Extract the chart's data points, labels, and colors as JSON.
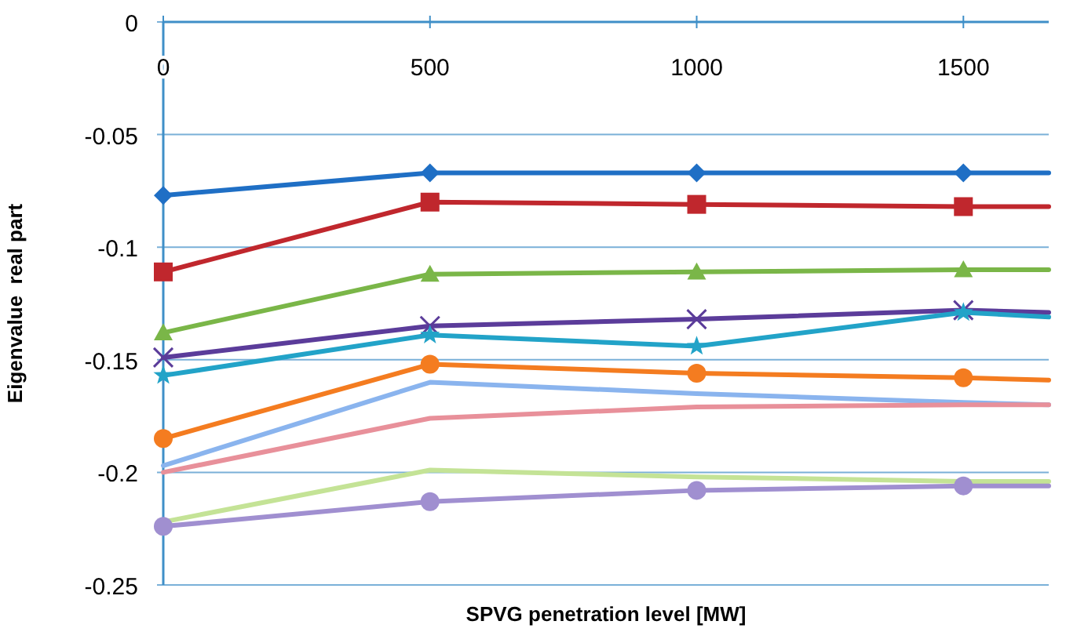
{
  "chart_data": {
    "type": "line",
    "xlabel": "SPVG penetration level [MW]",
    "ylabel": "Eigenvalue  real part",
    "x": [
      0,
      500,
      1000,
      1500,
      1660
    ],
    "xlim": [
      0,
      1660
    ],
    "xticks": [
      0,
      500,
      1000,
      1500
    ],
    "ylim": [
      -0.25,
      0
    ],
    "yticks": [
      0,
      -0.05,
      -0.1,
      -0.15,
      -0.2,
      -0.25
    ],
    "grid": "y",
    "line_style": "solid",
    "series": [
      {
        "color": "#1f6fc5",
        "marker": "diamond",
        "values": [
          -0.077,
          -0.067,
          -0.067,
          -0.067,
          -0.067
        ]
      },
      {
        "color": "#c0272d",
        "marker": "square",
        "values": [
          -0.111,
          -0.08,
          -0.081,
          -0.082,
          -0.082
        ]
      },
      {
        "color": "#7ab648",
        "marker": "triangle",
        "values": [
          -0.138,
          -0.112,
          -0.111,
          -0.11,
          -0.11
        ]
      },
      {
        "color": "#5b3c9a",
        "marker": "cross",
        "values": [
          -0.149,
          -0.135,
          -0.132,
          -0.128,
          -0.129
        ]
      },
      {
        "color": "#22a3c8",
        "marker": "star",
        "values": [
          -0.157,
          -0.139,
          -0.144,
          -0.129,
          -0.131
        ]
      },
      {
        "color": "#f47c20",
        "marker": "circle",
        "values": [
          -0.185,
          -0.152,
          -0.156,
          -0.158,
          -0.159
        ]
      },
      {
        "color": "#8ab4ee",
        "marker": "none",
        "values": [
          -0.197,
          -0.16,
          -0.165,
          -0.169,
          -0.17
        ]
      },
      {
        "color": "#e8909a",
        "marker": "none",
        "values": [
          -0.2,
          -0.176,
          -0.171,
          -0.17,
          -0.17
        ]
      },
      {
        "color": "#c4e396",
        "marker": "none",
        "values": [
          -0.222,
          -0.199,
          -0.202,
          -0.204,
          -0.204
        ]
      },
      {
        "color": "#a08fd0",
        "marker": "circle",
        "values": [
          -0.224,
          -0.213,
          -0.208,
          -0.206,
          -0.206
        ]
      }
    ]
  }
}
